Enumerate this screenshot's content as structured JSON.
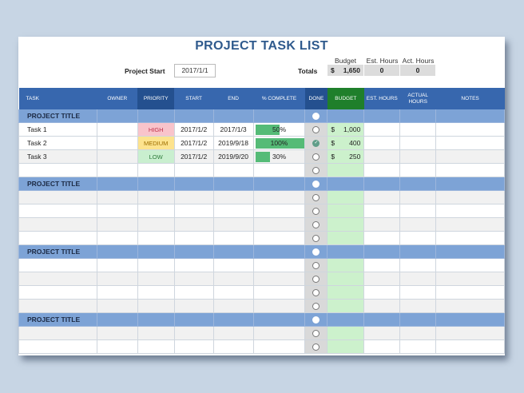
{
  "title": "PROJECT TASK LIST",
  "project_start": {
    "label": "Project Start",
    "value": "2017/1/1"
  },
  "totals": {
    "label": "Totals",
    "budget_header": "Budget",
    "est_header": "Est. Hours",
    "act_header": "Act. Hours",
    "currency": "$",
    "budget": "1,650",
    "est_hours": "0",
    "act_hours": "0"
  },
  "columns": [
    "TASK",
    "OWNER",
    "PRIORITY",
    "START",
    "END",
    "% COMPLETE",
    "DONE",
    "BUDGET",
    "EST. HOURS",
    "ACTUAL HOURS",
    "NOTES"
  ],
  "sections": [
    {
      "title": "PROJECT TITLE",
      "rows": [
        {
          "task": "Task 1",
          "owner": "",
          "priority": "HIGH",
          "start": "2017/1/2",
          "end": "2017/1/3",
          "pct": "50%",
          "pct_value": 50,
          "done": false,
          "currency": "$",
          "budget": "1,000"
        },
        {
          "task": "Task 2",
          "owner": "",
          "priority": "MEDIUM",
          "start": "2017/1/2",
          "end": "2019/9/18",
          "pct": "100%",
          "pct_value": 100,
          "done": true,
          "currency": "$",
          "budget": "400"
        },
        {
          "task": "Task 3",
          "owner": "",
          "priority": "LOW",
          "start": "2017/1/2",
          "end": "2019/9/20",
          "pct": "30%",
          "pct_value": 30,
          "done": false,
          "currency": "$",
          "budget": "250"
        },
        {
          "task": "",
          "owner": "",
          "priority": "",
          "start": "",
          "end": "",
          "pct": "",
          "pct_value": 0,
          "done": false,
          "currency": "",
          "budget": ""
        }
      ]
    },
    {
      "title": "PROJECT TITLE",
      "rows": [
        {},
        {},
        {},
        {}
      ]
    },
    {
      "title": "PROJECT TITLE",
      "rows": [
        {},
        {},
        {},
        {}
      ]
    },
    {
      "title": "PROJECT TITLE",
      "rows": [
        {},
        {}
      ]
    }
  ],
  "colors": {
    "header_blue": "#3767ae",
    "header_dark": "#24508f",
    "budget_green": "#1f7f2b",
    "section_row": "#7da3d6",
    "progress_bar": "#55bb77",
    "title_text": "#2f5a8d"
  }
}
